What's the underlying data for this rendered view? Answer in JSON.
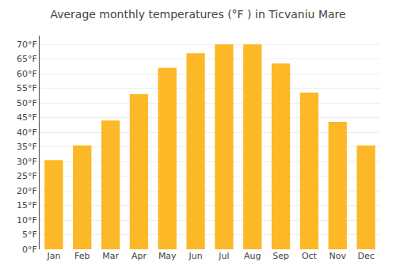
{
  "chart_data": {
    "type": "bar",
    "title": "Average monthly temperatures (°F ) in Ticvaniu Mare",
    "categories": [
      "Jan",
      "Feb",
      "Mar",
      "Apr",
      "May",
      "Jun",
      "Jul",
      "Aug",
      "Sep",
      "Oct",
      "Nov",
      "Dec"
    ],
    "values": [
      30.5,
      35.5,
      44.0,
      53.0,
      62.0,
      67.0,
      70.0,
      70.0,
      63.5,
      53.5,
      43.5,
      35.5
    ],
    "color": "#FDB827",
    "ylim": [
      0,
      73
    ],
    "yticks": [
      {
        "value": 0,
        "label": "0°F"
      },
      {
        "value": 5,
        "label": "5°F"
      },
      {
        "value": 10,
        "label": "10°F"
      },
      {
        "value": 15,
        "label": "15°F"
      },
      {
        "value": 20,
        "label": "20°F"
      },
      {
        "value": 25,
        "label": "25°F"
      },
      {
        "value": 30,
        "label": "30°F"
      },
      {
        "value": 35,
        "label": "35°F"
      },
      {
        "value": 40,
        "label": "40°F"
      },
      {
        "value": 45,
        "label": "45°F"
      },
      {
        "value": 50,
        "label": "50°F"
      },
      {
        "value": 55,
        "label": "55°F"
      },
      {
        "value": 60,
        "label": "60°F"
      },
      {
        "value": 65,
        "label": "65°F"
      },
      {
        "value": 70,
        "label": "70°F"
      }
    ],
    "grid": true
  }
}
